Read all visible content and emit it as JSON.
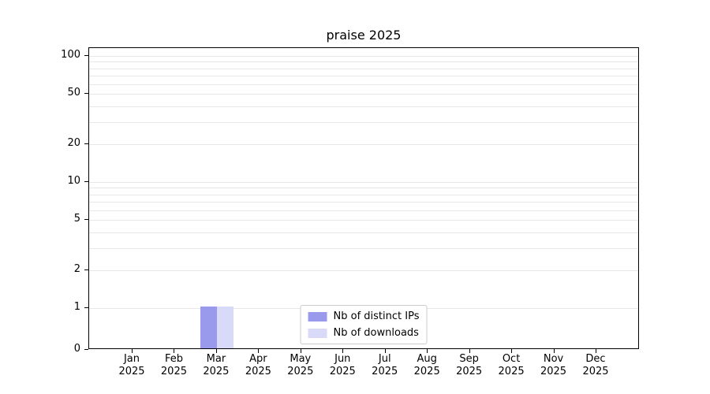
{
  "chart_data": {
    "type": "bar",
    "title": "praise 2025",
    "categories": [
      "Jan 2025",
      "Feb 2025",
      "Mar 2025",
      "Apr 2025",
      "May 2025",
      "Jun 2025",
      "Jul 2025",
      "Aug 2025",
      "Sep 2025",
      "Oct 2025",
      "Nov 2025",
      "Dec 2025"
    ],
    "series": [
      {
        "name": "Nb of distinct IPs",
        "color": "#9a9aec",
        "values": [
          0,
          0,
          1,
          0,
          0,
          0,
          0,
          0,
          0,
          0,
          0,
          0
        ]
      },
      {
        "name": "Nb of downloads",
        "color": "#d9d9f8",
        "values": [
          0,
          0,
          1,
          0,
          0,
          0,
          0,
          0,
          0,
          0,
          0,
          0
        ]
      }
    ],
    "yscale": "symlog",
    "yticks": [
      0,
      1,
      2,
      5,
      10,
      20,
      50,
      100
    ],
    "minor_grid_values": [
      1,
      2,
      3,
      4,
      5,
      6,
      7,
      8,
      9,
      10,
      20,
      30,
      40,
      50,
      60,
      70,
      80,
      90,
      100
    ],
    "ylim": [
      0,
      100
    ],
    "xlabel": "",
    "ylabel": "",
    "grid": "horizontal",
    "grid_color": "#e7e7e7",
    "legend_position": "lower-center"
  }
}
